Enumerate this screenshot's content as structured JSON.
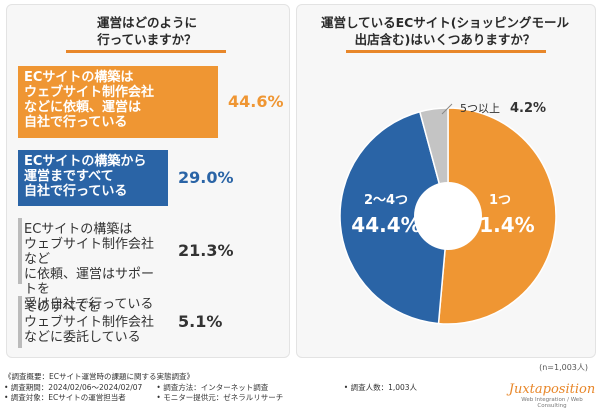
{
  "left_question": [
    "運営はどのように",
    "行っていますか？"
  ],
  "right_question": [
    "運営しているECサイト(ショッピングモール",
    "出店含む)はいくつありますか？"
  ],
  "colors": {
    "orange": "#ef9633",
    "blue": "#2a64a6",
    "gray": "#c4c4c4",
    "accent": "#e8872a"
  },
  "chart_data": [
    {
      "type": "bar",
      "categories": [
        [
          "ECサイトの構築は",
          "ウェブサイト制作会社",
          "などに依頼、運営は",
          "自社で行っている"
        ],
        [
          "ECサイトの構築から",
          "運営まですべて",
          "自社で行っている"
        ],
        [
          "ECサイトの構築は",
          "ウェブサイト制作会社など",
          "に依頼、運営はサポートを",
          "受け自社で行っている"
        ],
        [
          "そのすべてを",
          "ウェブサイト制作会社",
          "などに委託している"
        ]
      ],
      "values": [
        44.6,
        29.0,
        21.3,
        5.1
      ],
      "value_labels": [
        "44.6%",
        "29.0%",
        "21.3%",
        "5.1%"
      ]
    },
    {
      "type": "pie",
      "labels": [
        "1つ",
        "2〜4つ",
        "5つ以上"
      ],
      "values": [
        51.4,
        44.4,
        4.2
      ],
      "value_labels": [
        "51.4%",
        "44.4%",
        "4.2%"
      ],
      "note": "(n=1,003人)"
    }
  ],
  "footer": {
    "survey_summary": "《調査概要：ECサイト運営時の課題に関する実態調査》",
    "period": "• 調査期間：2024/02/06〜2024/02/07",
    "method": "• 調査方法：インターネット調査",
    "count": "• 調査人数：1,003人",
    "target": "• 調査対象：ECサイトの運営担当者",
    "provider": "• モニター提供元：ゼネラルリサーチ"
  },
  "logo": {
    "name": "Juxtaposition",
    "sub": "Web Integration / Web Consulting"
  }
}
